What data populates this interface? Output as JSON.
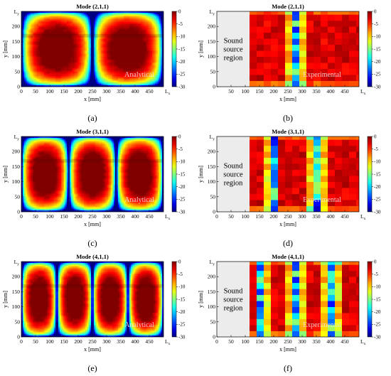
{
  "panels": [
    {
      "id": "a",
      "kind": "analytical",
      "title": "Mode (2,1,1)",
      "mode": [
        2,
        1,
        1
      ],
      "label": "(a)",
      "watermark": "Analytical",
      "xlabel": "x [mm]",
      "ylabel": "y [mm]",
      "xmax_label": "Lx",
      "ymax_label": "Ly",
      "xticks": [
        0,
        50,
        100,
        150,
        200,
        250,
        300,
        350,
        400,
        450
      ],
      "yticks": [
        0,
        50,
        100,
        150,
        200
      ],
      "xlim": [
        0,
        500
      ],
      "ylim": [
        0,
        250
      ],
      "colorbar_ticks": [
        0,
        -5,
        -10,
        -15,
        -20,
        -25,
        -30
      ],
      "clim": [
        -30,
        0
      ]
    },
    {
      "id": "b",
      "kind": "experimental",
      "title": "Mode (2,1,1)",
      "mode": [
        2,
        1,
        1
      ],
      "label": "(b)",
      "watermark": "Experimental",
      "xlabel": "x [mm]",
      "ylabel": "y [mm]",
      "xmax_label": "Lx",
      "ymax_label": "Ly",
      "xticks": [
        50,
        100,
        150,
        200,
        250,
        300,
        350,
        400,
        450
      ],
      "yticks": [
        0,
        50,
        100,
        150,
        200
      ],
      "xlim": [
        0,
        500
      ],
      "ylim": [
        0,
        250
      ],
      "source_region": {
        "text_lines": [
          "Sound",
          "source",
          "region"
        ],
        "x_end": 115
      },
      "colorbar_ticks": [
        0,
        -5,
        -10,
        -15,
        -20,
        -25,
        -30
      ],
      "clim": [
        -30,
        0
      ]
    },
    {
      "id": "c",
      "kind": "analytical",
      "title": "Mode (3,1,1)",
      "mode": [
        3,
        1,
        1
      ],
      "label": "(c)",
      "watermark": "Analytical",
      "xlabel": "x [mm]",
      "ylabel": "y [mm]",
      "xmax_label": "Lx",
      "ymax_label": "Ly",
      "xticks": [
        0,
        50,
        100,
        150,
        200,
        250,
        300,
        350,
        400,
        450
      ],
      "yticks": [
        0,
        50,
        100,
        150,
        200
      ],
      "xlim": [
        0,
        500
      ],
      "ylim": [
        0,
        250
      ],
      "colorbar_ticks": [
        0,
        -5,
        -10,
        -15,
        -20,
        -25,
        -30
      ],
      "clim": [
        -30,
        0
      ]
    },
    {
      "id": "d",
      "kind": "experimental",
      "title": "Mode (3,1,1)",
      "mode": [
        3,
        1,
        1
      ],
      "label": "(d)",
      "watermark": "Experimental",
      "xlabel": "x [mm]",
      "ylabel": "y [mm]",
      "xmax_label": "Lx",
      "ymax_label": "Ly",
      "xticks": [
        0,
        50,
        100,
        150,
        200,
        250,
        300,
        350,
        400,
        450
      ],
      "yticks": [
        0,
        50,
        100,
        150,
        200
      ],
      "xlim": [
        0,
        500
      ],
      "ylim": [
        0,
        250
      ],
      "source_region": {
        "text_lines": [
          "Sound",
          "source",
          "region"
        ],
        "x_end": 115
      },
      "colorbar_ticks": [
        0,
        -5,
        -10,
        -15,
        -20,
        -25,
        -30
      ],
      "clim": [
        -30,
        0
      ]
    },
    {
      "id": "e",
      "kind": "analytical",
      "title": "Mode (4,1,1)",
      "mode": [
        4,
        1,
        1
      ],
      "label": "(e)",
      "watermark": "Analytical",
      "xlabel": "x [mm]",
      "ylabel": "y [mm]",
      "xmax_label": "Lx",
      "ymax_label": "Ly",
      "xticks": [
        0,
        50,
        100,
        150,
        200,
        250,
        300,
        350,
        400,
        450
      ],
      "yticks": [
        0,
        50,
        100,
        150,
        200
      ],
      "xlim": [
        0,
        500
      ],
      "ylim": [
        0,
        250
      ],
      "colorbar_ticks": [
        0,
        -5,
        -10,
        -15,
        -20,
        -25,
        -30
      ],
      "clim": [
        -30,
        0
      ]
    },
    {
      "id": "f",
      "kind": "experimental",
      "title": "Mode (4,1,1)",
      "mode": [
        4,
        1,
        1
      ],
      "label": "(f)",
      "watermark": "Experimental",
      "xlabel": "x [mm]",
      "ylabel": "y [mm]",
      "xmax_label": "Lx",
      "ymax_label": "Ly",
      "xticks": [
        0,
        50,
        100,
        150,
        200,
        250,
        300,
        350,
        400,
        450
      ],
      "yticks": [
        0,
        50,
        100,
        150,
        200
      ],
      "xlim": [
        0,
        500
      ],
      "ylim": [
        0,
        250
      ],
      "source_region": {
        "text_lines": [
          "Sound",
          "source",
          "region"
        ],
        "x_end": 115
      },
      "colorbar_ticks": [
        0,
        -5,
        -10,
        -15,
        -20,
        -25,
        -30
      ],
      "clim": [
        -30,
        0
      ]
    }
  ],
  "chart_data": [
    {
      "type": "heatmap",
      "title": "Mode (2,1,1)",
      "xlabel": "x [mm]",
      "ylabel": "y [mm]",
      "xlim": [
        0,
        500
      ],
      "ylim": [
        0,
        250
      ],
      "zlim": [
        -30,
        0
      ],
      "mode_shape": "sound pressure level [dB] of mode (2,1,1), two antinode lobes, nodal line at x = 250 mm",
      "source": "analytical"
    },
    {
      "type": "heatmap",
      "title": "Mode (2,1,1)",
      "xlabel": "x [mm]",
      "ylabel": "y [mm]",
      "xlim": [
        0,
        500
      ],
      "ylim": [
        0,
        250
      ],
      "zlim": [
        -30,
        0
      ],
      "nodal_lines_x": [
        275
      ],
      "source": "experimental"
    },
    {
      "type": "heatmap",
      "title": "Mode (3,1,1)",
      "xlabel": "x [mm]",
      "ylabel": "y [mm]",
      "xlim": [
        0,
        500
      ],
      "ylim": [
        0,
        250
      ],
      "zlim": [
        -30,
        0
      ],
      "nodal_lines_x": [
        167,
        333
      ],
      "source": "analytical"
    },
    {
      "type": "heatmap",
      "title": "Mode (3,1,1)",
      "xlabel": "x [mm]",
      "ylabel": "y [mm]",
      "xlim": [
        0,
        500
      ],
      "ylim": [
        0,
        250
      ],
      "zlim": [
        -30,
        0
      ],
      "nodal_lines_x": [
        195,
        355
      ],
      "source": "experimental"
    },
    {
      "type": "heatmap",
      "title": "Mode (4,1,1)",
      "xlabel": "x [mm]",
      "ylabel": "y [mm]",
      "xlim": [
        0,
        500
      ],
      "ylim": [
        0,
        250
      ],
      "zlim": [
        -30,
        0
      ],
      "nodal_lines_x": [
        125,
        250,
        375
      ],
      "source": "analytical"
    },
    {
      "type": "heatmap",
      "title": "Mode (4,1,1)",
      "xlabel": "x [mm]",
      "ylabel": "y [mm]",
      "xlim": [
        0,
        500
      ],
      "ylim": [
        0,
        250
      ],
      "zlim": [
        -30,
        0
      ],
      "nodal_lines_x": [
        160,
        280,
        400
      ],
      "source": "experimental"
    }
  ]
}
